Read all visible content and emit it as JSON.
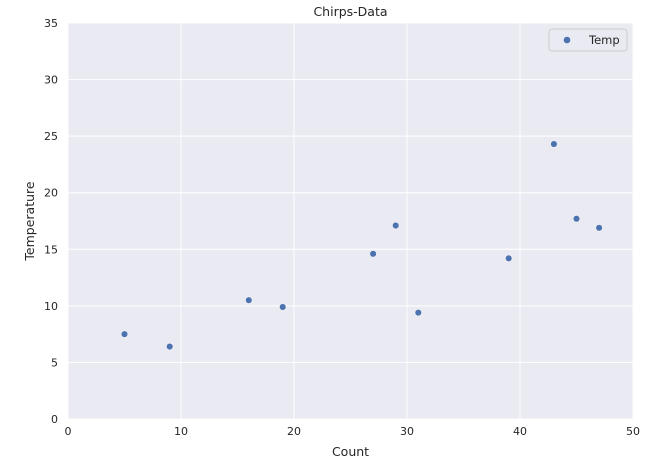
{
  "chart_data": {
    "type": "scatter",
    "title": "Chirps-Data",
    "xlabel": "Count",
    "ylabel": "Temperature",
    "xlim": [
      0,
      50
    ],
    "ylim": [
      0,
      35
    ],
    "xticks": [
      0,
      10,
      20,
      30,
      40,
      50
    ],
    "yticks": [
      0,
      5,
      10,
      15,
      20,
      25,
      30,
      35
    ],
    "grid": true,
    "legend_position": "top-right",
    "background_color": "#eaeaf2",
    "grid_color": "#ffffff",
    "series": [
      {
        "name": "Temp",
        "color": "#4c72b0",
        "x": [
          5,
          9,
          16,
          19,
          27,
          29,
          31,
          39,
          43,
          45,
          47
        ],
        "y": [
          7.5,
          6.4,
          10.5,
          9.9,
          14.6,
          17.1,
          9.4,
          14.2,
          24.3,
          17.7,
          16.9
        ]
      }
    ]
  }
}
